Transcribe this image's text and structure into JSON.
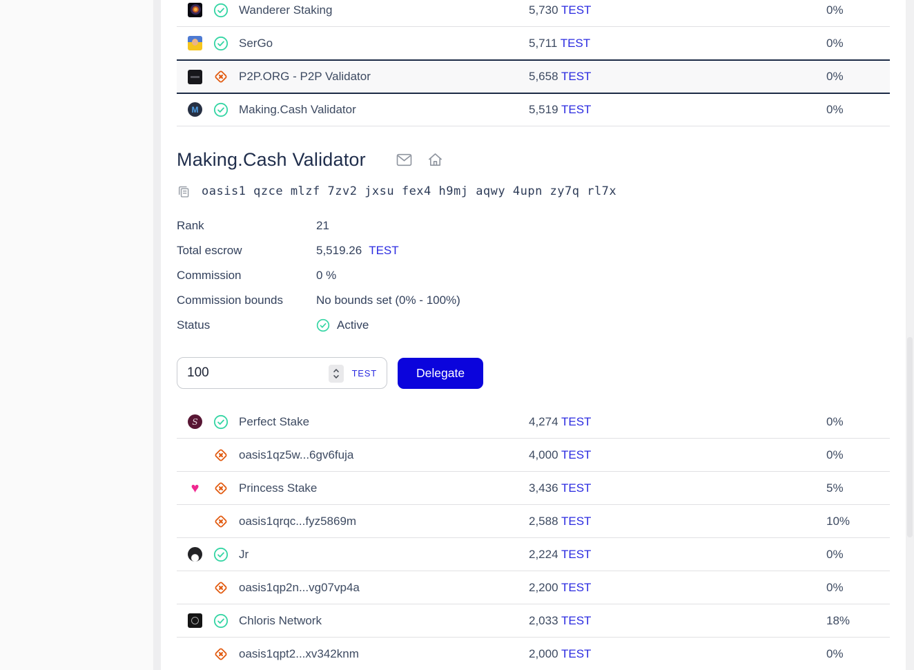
{
  "top_table": {
    "rows": [
      {
        "name": "Wanderer Staking",
        "avatar": "wanderer",
        "status": "active",
        "escrow": "5,730",
        "token": "TEST",
        "commission": "0%",
        "selected": false
      },
      {
        "name": "SerGo",
        "avatar": "sergo",
        "status": "active",
        "escrow": "5,711",
        "token": "TEST",
        "commission": "0%",
        "selected": false
      },
      {
        "name": "P2P.ORG - P2P Validator",
        "avatar": "p2p",
        "status": "inactive",
        "escrow": "5,658",
        "token": "TEST",
        "commission": "0%",
        "selected": true
      },
      {
        "name": "Making.Cash Validator",
        "avatar": "makingcash",
        "status": "active",
        "escrow": "5,519",
        "token": "TEST",
        "commission": "0%",
        "selected": false
      }
    ]
  },
  "detail": {
    "title": "Making.Cash Validator",
    "address": "oasis1 qzce mlzf 7zv2 jxsu fex4 h9mj aqwy 4upn zy7q rl7x",
    "rows": [
      {
        "label": "Rank",
        "value": "21"
      },
      {
        "label": "Total escrow",
        "value": "5,519.26",
        "token": "TEST"
      },
      {
        "label": "Commission",
        "value": "0 %"
      },
      {
        "label": "Commission bounds",
        "value": "No bounds set (0% - 100%)"
      },
      {
        "label": "Status",
        "value": "Active",
        "icon": "active"
      }
    ]
  },
  "form": {
    "amount": "100",
    "token": "TEST",
    "submit_label": "Delegate"
  },
  "bottom_table": {
    "rows": [
      {
        "name": "Perfect Stake",
        "avatar": "perfectstake",
        "status": "active",
        "escrow": "4,274",
        "token": "TEST",
        "commission": "0%",
        "selected": false
      },
      {
        "name": "oasis1qz5w...6gv6fuja",
        "avatar": "none",
        "status": "inactive",
        "escrow": "4,000",
        "token": "TEST",
        "commission": "0%",
        "selected": false
      },
      {
        "name": "Princess Stake",
        "avatar": "princess",
        "status": "inactive",
        "escrow": "3,436",
        "token": "TEST",
        "commission": "5%",
        "selected": false
      },
      {
        "name": "oasis1qrqc...fyz5869m",
        "avatar": "none",
        "status": "inactive",
        "escrow": "2,588",
        "token": "TEST",
        "commission": "10%",
        "selected": false
      },
      {
        "name": "Jr",
        "avatar": "jr",
        "status": "active",
        "escrow": "2,224",
        "token": "TEST",
        "commission": "0%",
        "selected": false
      },
      {
        "name": "oasis1qp2n...vg07vp4a",
        "avatar": "none",
        "status": "inactive",
        "escrow": "2,200",
        "token": "TEST",
        "commission": "0%",
        "selected": false
      },
      {
        "name": "Chloris Network",
        "avatar": "chloris",
        "status": "active",
        "escrow": "2,033",
        "token": "TEST",
        "commission": "18%",
        "selected": false
      },
      {
        "name": "oasis1qpt2...xv342knm",
        "avatar": "none",
        "status": "inactive",
        "escrow": "2,000",
        "token": "TEST",
        "commission": "0%",
        "selected": false
      }
    ]
  },
  "icons": {
    "active": "check-circle-icon",
    "inactive": "x-diamond-icon",
    "header": [
      "email-icon",
      "home-icon"
    ],
    "address": "copy-icon"
  },
  "colors": {
    "accent_blue": "#0b04dc",
    "token_blue": "#2a2ae0",
    "active_green": "#35d5a4",
    "inactive_orange": "#e25c12",
    "selected_border": "#1b2a45",
    "text_dark": "#3d4a61",
    "heading": "#1f2d4b"
  }
}
